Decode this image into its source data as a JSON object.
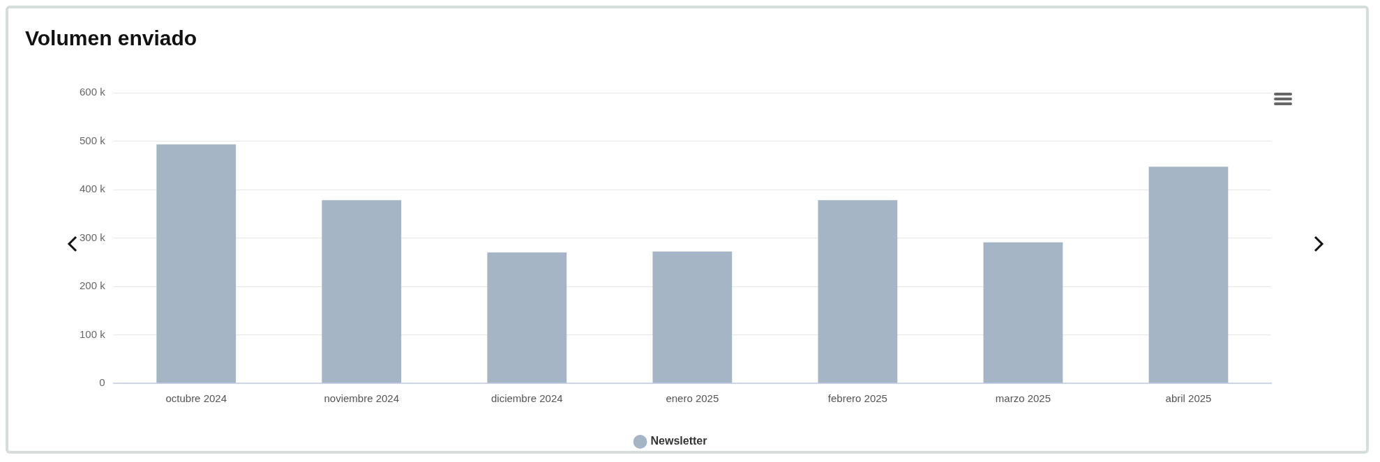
{
  "chart_data": {
    "type": "bar",
    "title": "Volumen enviado",
    "categories": [
      "octubre 2024",
      "noviembre 2024",
      "diciembre 2024",
      "enero 2025",
      "febrero 2025",
      "marzo 2025",
      "abril 2025"
    ],
    "series": [
      {
        "name": "Newsletter",
        "color": "#a5b5c6",
        "values": [
          493,
          378,
          270,
          272,
          378,
          291,
          447
        ]
      }
    ],
    "ylim": [
      0,
      600
    ],
    "yticks": [
      {
        "value": 0,
        "label": "0"
      },
      {
        "value": 100,
        "label": "100 k"
      },
      {
        "value": 200,
        "label": "200 k"
      },
      {
        "value": 300,
        "label": "300 k"
      },
      {
        "value": 400,
        "label": "400 k"
      },
      {
        "value": 500,
        "label": "500 k"
      },
      {
        "value": 600,
        "label": "600 k"
      }
    ],
    "grid": "y",
    "legend": "bottom"
  }
}
